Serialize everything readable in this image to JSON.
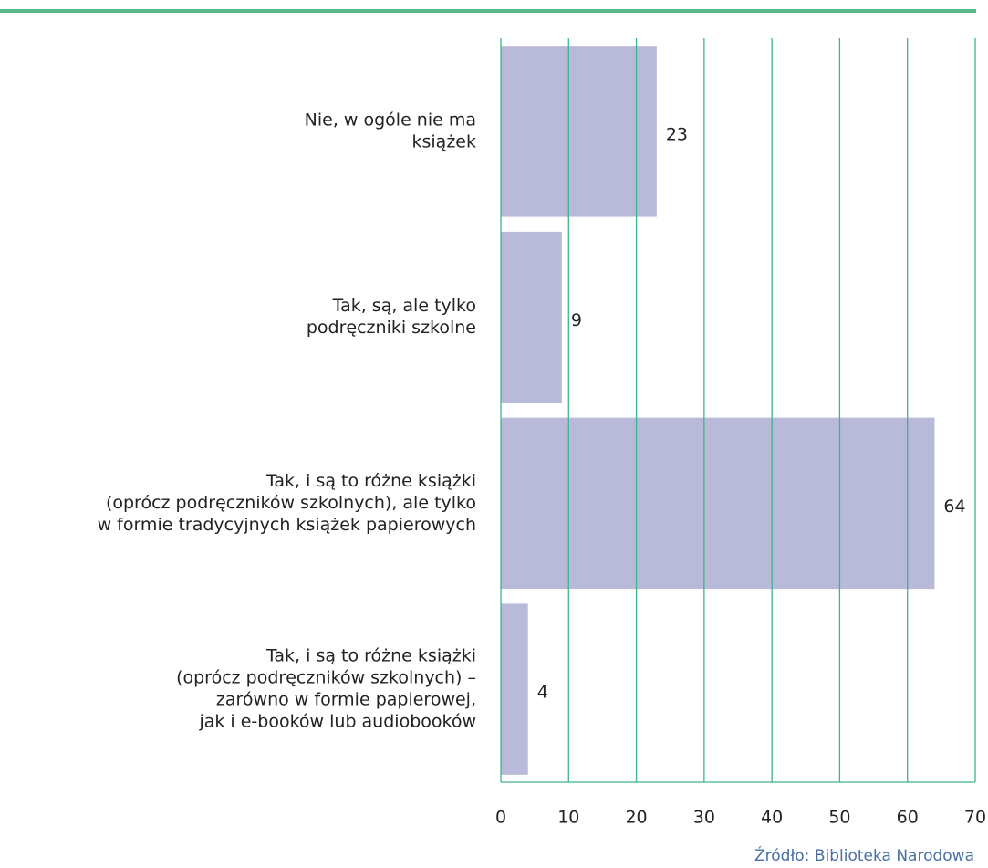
{
  "chart_data": {
    "type": "bar",
    "orientation": "horizontal",
    "categories": [
      [
        "Nie, w ogóle nie ma",
        "książek"
      ],
      [
        "Tak, są, ale tylko",
        "podręczniki szkolne"
      ],
      [
        "Tak, i są to różne książki",
        "(oprócz podręczników szkolnych), ale tylko",
        "w formie tradycyjnych książek papierowych"
      ],
      [
        "Tak, i są to różne książki",
        "(oprócz podręczników szkolnych) –",
        "zarówno w formie papierowej,",
        "jak i e-booków lub audiobooków"
      ]
    ],
    "values": [
      23,
      9,
      64,
      4
    ],
    "color": "#b9bad9",
    "grid_color": "#3db58a",
    "xlim": [
      0,
      70
    ],
    "xticks": [
      0,
      10,
      20,
      30,
      40,
      50,
      60,
      70
    ],
    "grid": true,
    "source": "Źródło: Biblioteka Narodowa"
  }
}
